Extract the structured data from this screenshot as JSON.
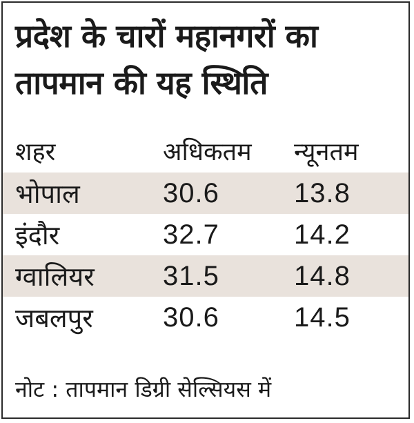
{
  "title": {
    "line1": "प्रदेश के चारों महानगरों का",
    "line2": "तापमान की यह स्थिति"
  },
  "table": {
    "headers": [
      "शहर",
      "अधिकतम",
      "न्यूनतम"
    ],
    "rows": [
      {
        "city": "भोपाल",
        "max": "30.6",
        "min": "13.8"
      },
      {
        "city": "इंदौर",
        "max": "32.7",
        "min": "14.2"
      },
      {
        "city": "ग्वालियर",
        "max": "31.5",
        "min": "14.8"
      },
      {
        "city": "जबलपुर",
        "max": "30.6",
        "min": "14.5"
      }
    ]
  },
  "note": "नोट : तापमान डिग्री सेल्सियस में",
  "colors": {
    "text": "#1a1a1a",
    "row_shade": "#e9e2dc",
    "border": "#2a2a2a",
    "background": "#ffffff"
  }
}
